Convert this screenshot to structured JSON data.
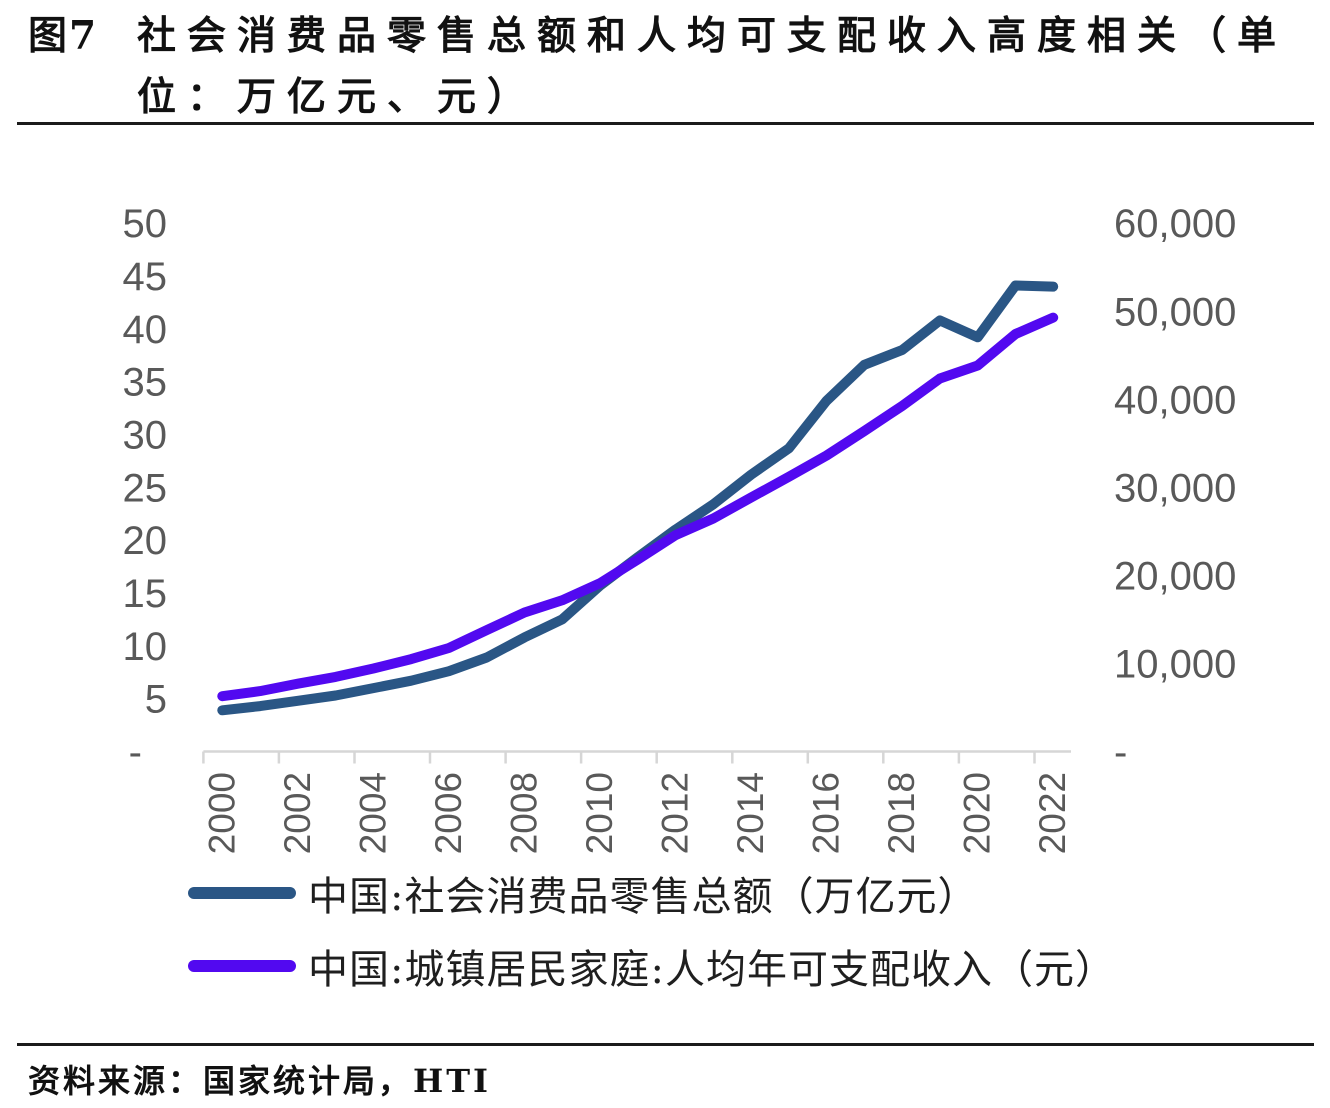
{
  "figure": {
    "label": "图7",
    "title_line1": "社会消费品零售总额和人均可支配收入高度相关（单",
    "title_line2": "位：万亿元、元）",
    "title_full": "图7 社会消费品零售总额和人均可支配收入高度相关（单位：万亿元、元）"
  },
  "legend": [
    {
      "label": "中国:社会消费品零售总额（万亿元）",
      "color": "#2A5685"
    },
    {
      "label": "中国:城镇居民家庭:人均年可支配收入（元）",
      "color": "#5209F0"
    }
  ],
  "source_line": "资料来源：国家统计局，HTI",
  "colors": {
    "axis_text": "#595959",
    "axis_line": "#d6d6d6",
    "retail_line": "#2A5685",
    "income_line": "#5209F0"
  },
  "chart_data": {
    "type": "line",
    "title": "社会消费品零售总额和人均可支配收入高度相关",
    "units": [
      "万亿元",
      "元"
    ],
    "x": [
      2000,
      2001,
      2002,
      2003,
      2004,
      2005,
      2006,
      2007,
      2008,
      2009,
      2010,
      2011,
      2012,
      2013,
      2014,
      2015,
      2016,
      2017,
      2018,
      2019,
      2020,
      2021,
      2022
    ],
    "x_tick_labels": [
      "2000",
      "2002",
      "2004",
      "2006",
      "2008",
      "2010",
      "2012",
      "2014",
      "2016",
      "2018",
      "2020",
      "2022"
    ],
    "series": [
      {
        "name": "中国:社会消费品零售总额（万亿元）",
        "axis": "left",
        "color": "#2A5685",
        "values": [
          3.9,
          4.3,
          4.8,
          5.3,
          6.0,
          6.7,
          7.6,
          8.9,
          10.8,
          12.5,
          15.7,
          18.4,
          21.0,
          23.4,
          26.2,
          28.7,
          33.2,
          36.6,
          38.0,
          40.8,
          39.2,
          44.1,
          44.0
        ]
      },
      {
        "name": "中国:城镇居民家庭:人均年可支配收入（元）",
        "axis": "right",
        "color": "#5209F0",
        "values": [
          6280,
          6860,
          7703,
          8472,
          9422,
          10493,
          11759,
          13786,
          15781,
          17175,
          19109,
          21810,
          24565,
          26467,
          28844,
          31195,
          33616,
          36396,
          39251,
          42359,
          43834,
          47412,
          49283
        ]
      }
    ],
    "left_axis": {
      "min": 0,
      "max": 50,
      "step": 5,
      "tick_labels": [
        "-",
        "5",
        "10",
        "15",
        "20",
        "25",
        "30",
        "35",
        "40",
        "45",
        "50"
      ]
    },
    "right_axis": {
      "min": 0,
      "max": 60000,
      "step": 10000,
      "tick_labels": [
        "-",
        "10,000",
        "20,000",
        "30,000",
        "40,000",
        "50,000",
        "60,000"
      ]
    },
    "grid": false,
    "legend_position": "bottom"
  }
}
